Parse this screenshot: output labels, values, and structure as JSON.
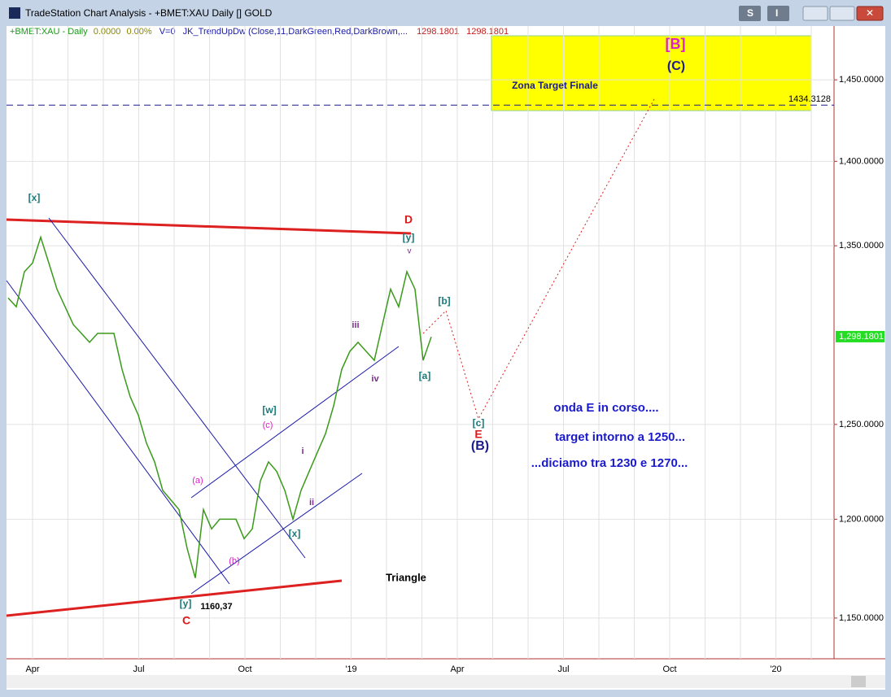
{
  "window": {
    "title": "TradeStation Chart Analysis - +BMET:XAU Daily [] GOLD",
    "buttons": [
      "S",
      "I"
    ]
  },
  "header": {
    "symbol": "+BMET:XAU - Daily",
    "change": "0.0000",
    "change_pct": "0.00%",
    "volume": "V=0",
    "indicator": "JK_TrendUpDw (Close,11,DarkGreen,Red,DarkBrown,...",
    "value1": 1298.1801,
    "value2": 1298.1801
  },
  "chart_data": {
    "type": "line",
    "xticks": [
      "Apr",
      "Jul",
      "Oct",
      "'19",
      "Apr",
      "Jul",
      "Oct",
      "'20"
    ],
    "series": [
      {
        "color": "#3a9a1a",
        "values": [
          1320,
          1315,
          1335,
          1340,
          1355,
          1340,
          1325,
          1315,
          1305,
          1300,
          1295,
          1300,
          1300,
          1300,
          1280,
          1265,
          1255,
          1240,
          1230,
          1215,
          1210,
          1205,
          1185,
          1170,
          1205,
          1195,
          1200,
          1200,
          1200,
          1190,
          1195,
          1220,
          1230,
          1225,
          1215,
          1200,
          1215,
          1225,
          1235,
          1245,
          1260,
          1280,
          1290,
          1295,
          1290,
          1285,
          1305,
          1325,
          1315,
          1335,
          1325,
          1285,
          1298
        ]
      }
    ],
    "ylim": [
      1130,
      1484
    ],
    "log": true,
    "yticks": [
      {
        "value": 1150,
        "label": "1,150.0000"
      },
      {
        "value": 1200,
        "label": "1,200.0000"
      },
      {
        "value": 1250,
        "label": "1,250.0000"
      },
      {
        "value": 1350,
        "label": "1,350.0000"
      },
      {
        "value": 1400,
        "label": "1,400.0000"
      },
      {
        "value": 1450,
        "label": "1,450.0000"
      }
    ],
    "grid": true,
    "target_line": 1434.3128,
    "last_price": {
      "value": 1298.1801,
      "label": "1,298.1801"
    },
    "annotations": [
      "[x]",
      "D",
      "[y]",
      "v",
      "[b]",
      "iii",
      "iv",
      "[a]",
      "[w]",
      "(c)",
      "i",
      "ii",
      "(a)",
      "(b)",
      "[x]",
      "[y]",
      "1160,37",
      "C",
      "Triangle",
      "[c]",
      "E",
      "(B)",
      "onda E in corso....",
      "target intorno a 1250...",
      "...diciamo tra 1230 e 1270...",
      "Zona Target Finale",
      "[B]",
      "(C)"
    ]
  }
}
